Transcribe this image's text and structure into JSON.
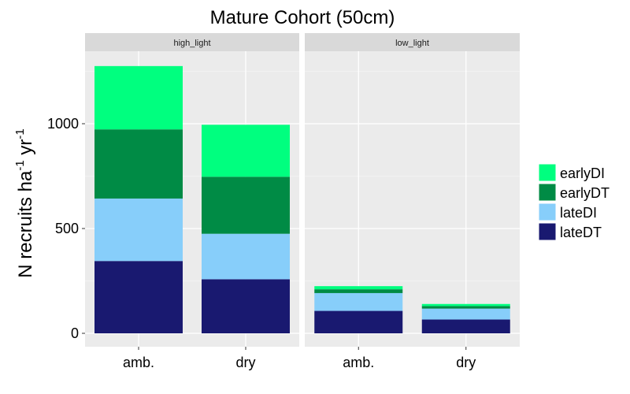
{
  "chart_data": {
    "type": "bar",
    "stacked": true,
    "title": "Mature Cohort (50cm)",
    "ylabel_parts": [
      "N recruits ha",
      "-1",
      " yr",
      "-1"
    ],
    "xlabel": "",
    "ylim": [
      0,
      1340
    ],
    "yticks": [
      0,
      500,
      1000
    ],
    "categories": [
      "amb.",
      "dry"
    ],
    "grid": true,
    "legend_position": "right",
    "panels": [
      {
        "name": "high_light",
        "series": [
          {
            "name": "lateDT",
            "values": [
              345,
              258
            ]
          },
          {
            "name": "lateDI",
            "values": [
              298,
              217
            ]
          },
          {
            "name": "earlyDT",
            "values": [
              330,
              272
            ]
          },
          {
            "name": "earlyDI",
            "values": [
              302,
              248
            ]
          }
        ]
      },
      {
        "name": "low_light",
        "series": [
          {
            "name": "lateDT",
            "values": [
              107,
              66
            ]
          },
          {
            "name": "lateDI",
            "values": [
              85,
              52
            ]
          },
          {
            "name": "earlyDT",
            "values": [
              18,
              12
            ]
          },
          {
            "name": "earlyDI",
            "values": [
              15,
              10
            ]
          }
        ]
      }
    ],
    "legend": [
      "earlyDI",
      "earlyDT",
      "lateDI",
      "lateDT"
    ],
    "colors": {
      "earlyDI": "#00FF7F",
      "earlyDT": "#008B45",
      "lateDI": "#87CEFA",
      "lateDT": "#191970"
    }
  }
}
